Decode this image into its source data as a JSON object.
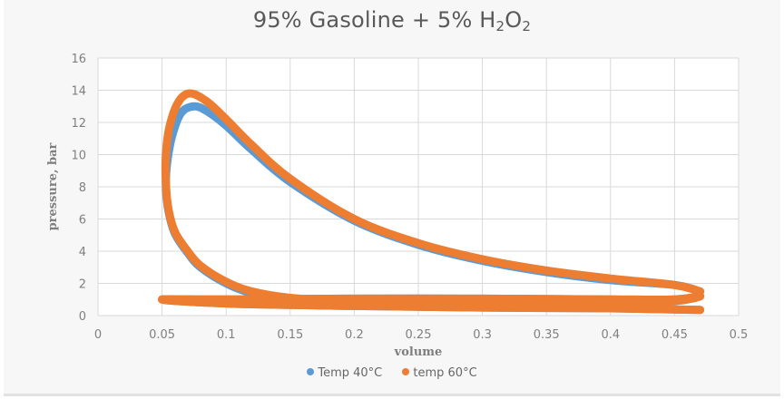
{
  "title": {
    "main": "95% Gasoline + 5% H",
    "sub1": "2",
    "mid": "O",
    "sub2": "2"
  },
  "colors": {
    "series_40": "#5b9bd5",
    "series_60": "#ed7d31",
    "grid": "#d9d9d9",
    "background": "#f7f7f7",
    "plot_bg": "#ffffff"
  },
  "legend": [
    {
      "label": "Temp 40°C",
      "color": "#5b9bd5"
    },
    {
      "label": "temp 60°C",
      "color": "#ed7d31"
    }
  ],
  "chart_data": {
    "type": "scatter",
    "title": "95% Gasoline + 5% H2O2",
    "xlabel": "volume",
    "ylabel": "pressure, bar",
    "xlim": [
      0,
      0.5
    ],
    "ylim": [
      0,
      16
    ],
    "xticks": [
      "0",
      "0.05",
      "0.1",
      "0.15",
      "0.2",
      "0.25",
      "0.3",
      "0.35",
      "0.4",
      "0.45",
      "0.5"
    ],
    "yticks": [
      "0",
      "2",
      "4",
      "6",
      "8",
      "10",
      "12",
      "14",
      "16"
    ],
    "grid": true,
    "legend_position": "bottom",
    "series": [
      {
        "name": "Temp 40°C",
        "color": "#5b9bd5",
        "x": [
          0.47,
          0.45,
          0.4,
          0.35,
          0.3,
          0.25,
          0.2,
          0.15,
          0.12,
          0.1,
          0.085,
          0.075,
          0.065,
          0.058,
          0.054,
          0.053,
          0.055,
          0.06,
          0.07,
          0.08,
          0.1,
          0.12,
          0.15,
          0.2,
          0.25,
          0.3,
          0.35,
          0.4,
          0.45,
          0.47,
          0.45,
          0.4,
          0.3,
          0.2,
          0.1,
          0.05,
          0.1,
          0.2,
          0.3,
          0.4,
          0.47
        ],
        "y": [
          1.5,
          1.9,
          2.2,
          2.7,
          3.4,
          4.4,
          5.9,
          8.3,
          10.3,
          11.8,
          12.7,
          13.0,
          12.6,
          11.2,
          9.5,
          8.0,
          6.5,
          5.1,
          3.9,
          3.0,
          2.0,
          1.4,
          1.0,
          0.8,
          0.7,
          0.7,
          0.75,
          0.8,
          0.9,
          1.2,
          1.0,
          1.0,
          1.05,
          1.05,
          1.0,
          1.0,
          0.75,
          0.6,
          0.5,
          0.45,
          0.35
        ]
      },
      {
        "name": "temp 60°C",
        "color": "#ed7d31",
        "x": [
          0.47,
          0.45,
          0.4,
          0.35,
          0.3,
          0.25,
          0.2,
          0.15,
          0.12,
          0.1,
          0.085,
          0.072,
          0.063,
          0.056,
          0.053,
          0.053,
          0.055,
          0.06,
          0.07,
          0.08,
          0.1,
          0.12,
          0.15,
          0.2,
          0.25,
          0.3,
          0.35,
          0.4,
          0.45,
          0.47,
          0.45,
          0.4,
          0.3,
          0.2,
          0.1,
          0.05,
          0.1,
          0.2,
          0.3,
          0.4,
          0.47
        ],
        "y": [
          1.5,
          1.9,
          2.3,
          2.8,
          3.5,
          4.5,
          6.0,
          8.5,
          10.6,
          12.2,
          13.3,
          13.8,
          13.3,
          11.8,
          10.0,
          8.2,
          6.6,
          5.2,
          4.0,
          3.1,
          2.1,
          1.5,
          1.1,
          0.85,
          0.75,
          0.7,
          0.75,
          0.8,
          0.9,
          1.2,
          1.0,
          1.0,
          1.05,
          1.05,
          1.0,
          1.0,
          0.75,
          0.6,
          0.5,
          0.45,
          0.35
        ]
      }
    ]
  }
}
